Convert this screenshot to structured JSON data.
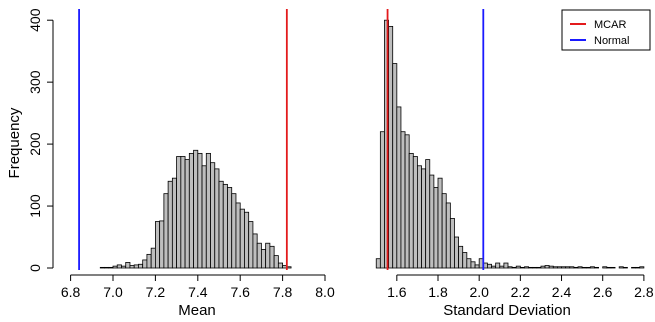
{
  "chart_data": [
    {
      "type": "bar",
      "subtype": "histogram",
      "xlabel": "Mean",
      "ylabel": "Frequency",
      "xlim": [
        6.75,
        8.0
      ],
      "ylim": [
        0,
        410
      ],
      "xticks": [
        6.8,
        7.0,
        7.2,
        7.4,
        7.6,
        7.8,
        8.0
      ],
      "xtick_labels": [
        "6.8",
        "7.0",
        "7.2",
        "7.4",
        "7.6",
        "7.8",
        "8.0"
      ],
      "yticks": [
        0,
        100,
        200,
        300,
        400
      ],
      "ytick_labels": [
        "0",
        "100",
        "200",
        "300",
        "400"
      ],
      "bin_width": 0.02,
      "bins_start": [
        6.94,
        6.96,
        6.98,
        7.0,
        7.02,
        7.04,
        7.06,
        7.08,
        7.1,
        7.12,
        7.14,
        7.16,
        7.18,
        7.2,
        7.22,
        7.24,
        7.26,
        7.28,
        7.3,
        7.32,
        7.34,
        7.36,
        7.38,
        7.4,
        7.42,
        7.44,
        7.46,
        7.48,
        7.5,
        7.52,
        7.54,
        7.56,
        7.58,
        7.6,
        7.62,
        7.64,
        7.66,
        7.68,
        7.7,
        7.72,
        7.74,
        7.76,
        7.78,
        7.8,
        7.82
      ],
      "values": [
        1,
        1,
        1,
        3,
        5,
        3,
        9,
        4,
        5,
        6,
        13,
        22,
        32,
        75,
        76,
        120,
        140,
        145,
        180,
        180,
        175,
        185,
        190,
        185,
        165,
        185,
        170,
        160,
        140,
        135,
        130,
        120,
        105,
        95,
        90,
        75,
        55,
        40,
        30,
        40,
        35,
        20,
        8,
        4,
        2
      ],
      "vlines": [
        {
          "name": "Normal",
          "x": 6.84,
          "color": "#1a1aff"
        },
        {
          "name": "MCAR",
          "x": 7.82,
          "color": "#e31a1c"
        }
      ],
      "grid": false,
      "bar_color": "#bebebe"
    },
    {
      "type": "bar",
      "subtype": "histogram",
      "xlabel": "Standard Deviation",
      "ylabel": "",
      "xlim": [
        1.46,
        2.82
      ],
      "ylim": [
        0,
        410
      ],
      "xticks": [
        1.6,
        1.8,
        2.0,
        2.2,
        2.4,
        2.6,
        2.8
      ],
      "xtick_labels": [
        "1.6",
        "1.8",
        "2.0",
        "2.2",
        "2.4",
        "2.6",
        "2.8"
      ],
      "bin_width": 0.02,
      "bins_start": [
        1.5,
        1.52,
        1.54,
        1.56,
        1.58,
        1.6,
        1.62,
        1.64,
        1.66,
        1.68,
        1.7,
        1.72,
        1.74,
        1.76,
        1.78,
        1.8,
        1.82,
        1.84,
        1.86,
        1.88,
        1.9,
        1.92,
        1.94,
        1.96,
        1.98,
        2.0,
        2.02,
        2.04,
        2.06,
        2.08,
        2.1,
        2.12,
        2.14,
        2.16,
        2.18,
        2.2,
        2.22,
        2.24,
        2.26,
        2.28,
        2.3,
        2.32,
        2.34,
        2.36,
        2.38,
        2.4,
        2.42,
        2.44,
        2.46,
        2.48,
        2.5,
        2.52,
        2.54,
        2.56,
        2.58,
        2.6,
        2.62,
        2.64,
        2.66,
        2.68,
        2.7,
        2.72,
        2.74,
        2.76,
        2.78,
        2.8
      ],
      "values": [
        15,
        220,
        400,
        390,
        330,
        260,
        220,
        215,
        185,
        180,
        165,
        160,
        175,
        150,
        130,
        145,
        120,
        105,
        80,
        50,
        35,
        25,
        15,
        10,
        5,
        15,
        8,
        6,
        3,
        8,
        3,
        8,
        2,
        1,
        3,
        1,
        2,
        1,
        1,
        1,
        3,
        4,
        3,
        2,
        2,
        2,
        2,
        2,
        1,
        2,
        1,
        1,
        2,
        1,
        0,
        2,
        1,
        1,
        0,
        2,
        1,
        0,
        1,
        1,
        2,
        0
      ],
      "vlines": [
        {
          "name": "MCAR",
          "x": 1.555,
          "color": "#e31a1c"
        },
        {
          "name": "Normal",
          "x": 2.02,
          "color": "#1a1aff"
        }
      ],
      "grid": false,
      "bar_color": "#bebebe"
    }
  ],
  "legend": {
    "placement": "top-right",
    "entries": [
      {
        "label": "MCAR",
        "color": "#e31a1c"
      },
      {
        "label": "Normal",
        "color": "#1a1aff"
      }
    ]
  }
}
